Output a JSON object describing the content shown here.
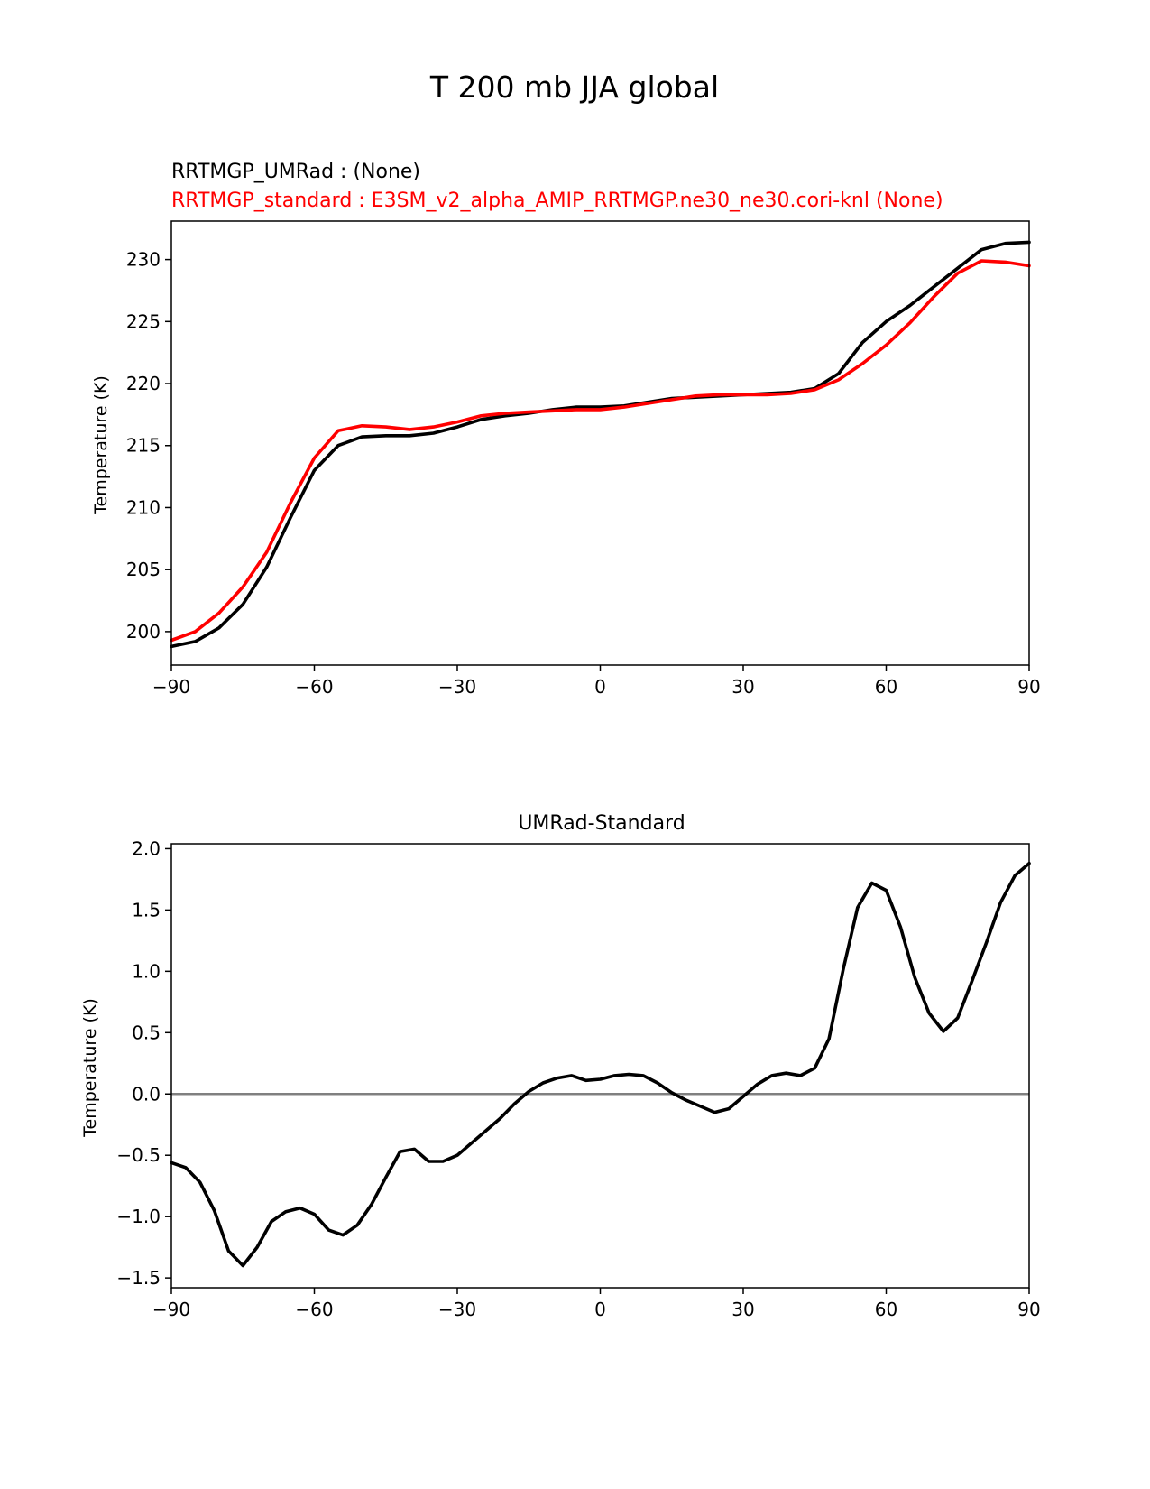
{
  "figure": {
    "suptitle": "T 200 mb JJA global"
  },
  "chart_data": [
    {
      "type": "line",
      "legend_lines": [
        {
          "text": "RRTMGP_UMRad :   (None)",
          "color": "#000000"
        },
        {
          "text": "RRTMGP_standard : E3SM_v2_alpha_AMIP_RRTMGP.ne30_ne30.cori-knl (None)",
          "color": "#ff0000"
        }
      ],
      "xlabel": "",
      "ylabel": "Temperature (K)",
      "xlim": [
        -90,
        90
      ],
      "ylim": [
        197.3,
        233.1
      ],
      "xticks": [
        -90,
        -60,
        -30,
        0,
        30,
        60,
        90
      ],
      "xtick_labels": [
        "−90",
        "−60",
        "−30",
        "0",
        "30",
        "60",
        "90"
      ],
      "yticks": [
        200,
        205,
        210,
        215,
        220,
        225,
        230
      ],
      "ytick_labels": [
        "200",
        "205",
        "210",
        "215",
        "220",
        "225",
        "230"
      ],
      "grid": false,
      "x": [
        -90,
        -85,
        -80,
        -75,
        -70,
        -65,
        -60,
        -55,
        -50,
        -45,
        -40,
        -35,
        -30,
        -25,
        -20,
        -15,
        -10,
        -5,
        0,
        5,
        10,
        15,
        20,
        25,
        30,
        35,
        40,
        45,
        50,
        55,
        60,
        65,
        70,
        75,
        80,
        85,
        90
      ],
      "series": [
        {
          "color": "#000000",
          "values": [
            198.8,
            199.2,
            200.3,
            202.2,
            205.2,
            209.2,
            213.0,
            215.0,
            215.7,
            215.8,
            215.8,
            216.0,
            216.5,
            217.1,
            217.4,
            217.6,
            217.9,
            218.1,
            218.1,
            218.2,
            218.5,
            218.8,
            218.9,
            219.0,
            219.1,
            219.2,
            219.3,
            219.6,
            220.8,
            223.3,
            225.0,
            226.3,
            227.8,
            229.3,
            230.8,
            231.3,
            231.4
          ]
        },
        {
          "color": "#ff0000",
          "values": [
            199.3,
            200.0,
            201.5,
            203.6,
            206.4,
            210.4,
            214.0,
            216.2,
            216.6,
            216.5,
            216.3,
            216.5,
            216.9,
            217.4,
            217.6,
            217.7,
            217.8,
            217.9,
            217.9,
            218.1,
            218.4,
            218.7,
            219.0,
            219.1,
            219.1,
            219.1,
            219.2,
            219.5,
            220.3,
            221.6,
            223.1,
            224.9,
            227.0,
            228.9,
            229.9,
            229.8,
            229.5
          ]
        }
      ]
    },
    {
      "type": "line",
      "title": "UMRad-Standard",
      "xlabel": "",
      "ylabel": "Temperature (K)",
      "xlim": [
        -90,
        90
      ],
      "ylim": [
        -1.58,
        2.04
      ],
      "xticks": [
        -90,
        -60,
        -30,
        0,
        30,
        60,
        90
      ],
      "xtick_labels": [
        "−90",
        "−60",
        "−30",
        "0",
        "30",
        "60",
        "90"
      ],
      "yticks": [
        -1.5,
        -1.0,
        -0.5,
        0.0,
        0.5,
        1.0,
        1.5,
        2.0
      ],
      "ytick_labels": [
        "−1.5",
        "−1.0",
        "−0.5",
        "0.0",
        "0.5",
        "1.0",
        "1.5",
        "2.0"
      ],
      "grid": false,
      "reference_line": {
        "y": 0.0,
        "color": "#808080"
      },
      "x": [
        -90,
        -87,
        -84,
        -81,
        -78,
        -75,
        -72,
        -69,
        -66,
        -63,
        -60,
        -57,
        -54,
        -51,
        -48,
        -45,
        -42,
        -39,
        -36,
        -33,
        -30,
        -27,
        -24,
        -21,
        -18,
        -15,
        -12,
        -9,
        -6,
        -3,
        0,
        3,
        6,
        9,
        12,
        15,
        18,
        21,
        24,
        27,
        30,
        33,
        36,
        39,
        42,
        45,
        48,
        51,
        54,
        57,
        60,
        63,
        66,
        69,
        72,
        75,
        78,
        81,
        84,
        87,
        90
      ],
      "series": [
        {
          "color": "#000000",
          "values": [
            -0.56,
            -0.6,
            -0.72,
            -0.95,
            -1.28,
            -1.4,
            -1.25,
            -1.04,
            -0.96,
            -0.93,
            -0.98,
            -1.11,
            -1.15,
            -1.07,
            -0.9,
            -0.68,
            -0.47,
            -0.45,
            -0.55,
            -0.55,
            -0.5,
            -0.4,
            -0.3,
            -0.2,
            -0.08,
            0.02,
            0.09,
            0.13,
            0.15,
            0.11,
            0.12,
            0.15,
            0.16,
            0.15,
            0.09,
            0.01,
            -0.05,
            -0.1,
            -0.15,
            -0.12,
            -0.02,
            0.08,
            0.15,
            0.17,
            0.15,
            0.21,
            0.45,
            1.02,
            1.52,
            1.72,
            1.66,
            1.36,
            0.95,
            0.66,
            0.51,
            0.62,
            0.92,
            1.23,
            1.56,
            1.78,
            1.88
          ]
        }
      ]
    }
  ]
}
